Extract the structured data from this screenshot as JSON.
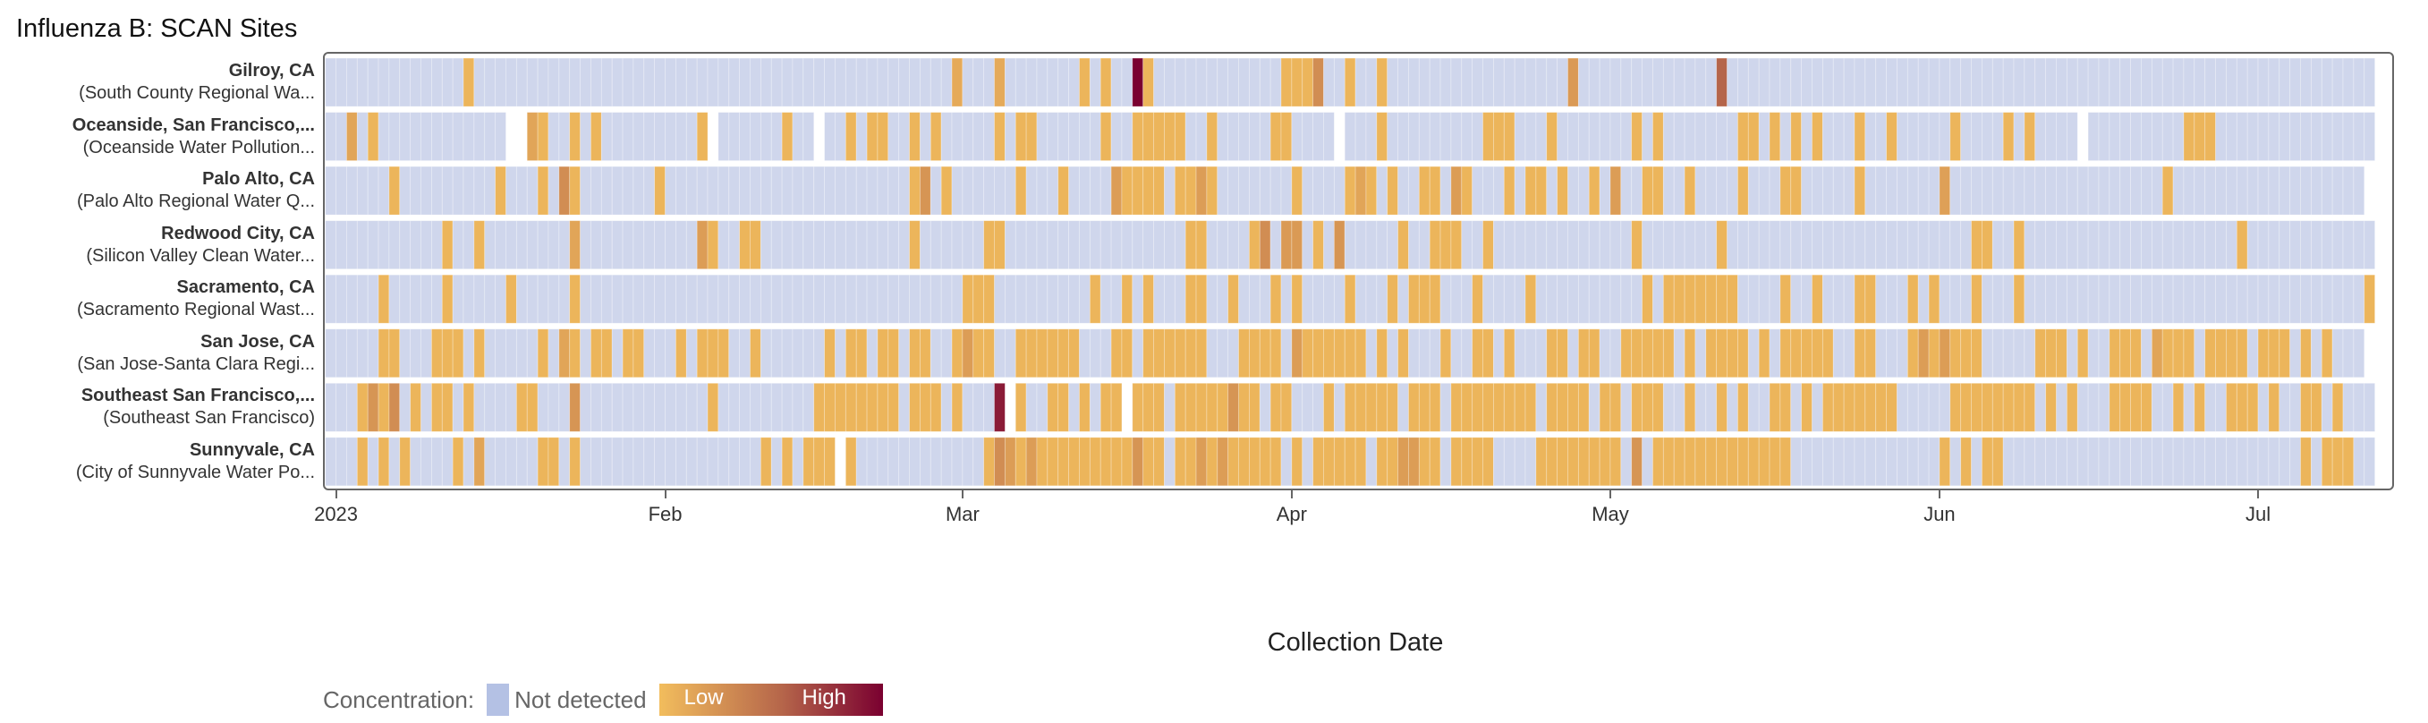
{
  "chart_data": {
    "type": "heatmap",
    "title": "Influenza B: SCAN Sites",
    "xlabel": "Collection Date",
    "x_range": [
      "2022-12-31",
      "2023-07-11"
    ],
    "xticks": [
      {
        "date": "2023-01-01",
        "label": "2023"
      },
      {
        "date": "2023-02-01",
        "label": "Feb"
      },
      {
        "date": "2023-03-01",
        "label": "Mar"
      },
      {
        "date": "2023-04-01",
        "label": "Apr"
      },
      {
        "date": "2023-05-01",
        "label": "May"
      },
      {
        "date": "2023-06-01",
        "label": "Jun"
      },
      {
        "date": "2023-07-01",
        "label": "Jul"
      }
    ],
    "legend": {
      "title": "Concentration:",
      "not_detected_label": "Not detected",
      "low_label": "Low",
      "high_label": "High",
      "placement": "bottom-left"
    },
    "colors": {
      "not_detected": "#cfd6ec",
      "legend_not_detected": "#b4c1e4",
      "low": "#f2bd5d",
      "mid": "#b5654a",
      "high": "#7a0030"
    },
    "value_scale": "relative concentration 0 (low) to 1 (high)",
    "default_detected_level": 0.05,
    "sites": [
      {
        "name": "Gilroy, CA",
        "facility": "(South County Regional Wa...",
        "end": "2023-07-11",
        "detected": [
          "2023-01-13",
          "2023-02-28",
          "2023-03-04",
          "2023-03-12",
          "2023-03-14",
          [
            "2023-03-17",
            "2023-03-18"
          ],
          [
            "2023-03-31",
            "2023-04-03"
          ],
          "2023-04-06",
          "2023-04-09",
          "2023-04-27",
          "2023-05-11"
        ],
        "levels": {
          "2023-02-28": 0.12,
          "2023-03-04": 0.12,
          "2023-03-17": 1.0,
          "2023-04-03": 0.3,
          "2023-04-27": 0.22,
          "2023-05-11": 0.55
        },
        "missing": []
      },
      {
        "name": "Oceanside, San Francisco,...",
        "facility": "(Oceanside Water Pollution...",
        "end": "2023-07-11",
        "detected": [
          "2023-01-02",
          "2023-01-04",
          [
            "2023-01-19",
            "2023-01-20"
          ],
          "2023-01-23",
          "2023-01-25",
          "2023-02-04",
          "2023-02-12",
          "2023-02-18",
          [
            "2023-02-20",
            "2023-02-21"
          ],
          "2023-02-24",
          "2023-02-26",
          "2023-03-04",
          [
            "2023-03-06",
            "2023-03-07"
          ],
          "2023-03-14",
          [
            "2023-03-17",
            "2023-03-21"
          ],
          "2023-03-24",
          [
            "2023-03-30",
            "2023-03-31"
          ],
          "2023-04-09",
          [
            "2023-04-19",
            "2023-04-21"
          ],
          "2023-04-25",
          "2023-05-03",
          "2023-05-05",
          [
            "2023-05-13",
            "2023-05-14"
          ],
          "2023-05-16",
          "2023-05-18",
          "2023-05-20",
          "2023-05-24",
          "2023-05-27",
          "2023-06-02",
          "2023-06-07",
          "2023-06-09",
          [
            "2023-06-24",
            "2023-06-26"
          ]
        ],
        "levels": {
          "2023-01-02": 0.15,
          "2023-01-19": 0.15
        },
        "missing": [
          "2023-01-17",
          "2023-01-18",
          "2023-02-05",
          "2023-02-15",
          "2023-04-05",
          "2023-06-14"
        ]
      },
      {
        "name": "Palo Alto, CA",
        "facility": "(Palo Alto Regional Water Q...",
        "end": "2023-07-10",
        "detected": [
          "2023-01-06",
          "2023-01-16",
          "2023-01-20",
          [
            "2023-01-22",
            "2023-01-23"
          ],
          "2023-01-31",
          [
            "2023-02-24",
            "2023-02-25"
          ],
          "2023-02-27",
          "2023-03-06",
          "2023-03-10",
          [
            "2023-03-15",
            "2023-03-19"
          ],
          [
            "2023-03-21",
            "2023-03-24"
          ],
          "2023-04-01",
          [
            "2023-04-06",
            "2023-04-08"
          ],
          "2023-04-10",
          [
            "2023-04-13",
            "2023-04-14"
          ],
          [
            "2023-04-16",
            "2023-04-17"
          ],
          "2023-04-21",
          [
            "2023-04-23",
            "2023-04-24"
          ],
          "2023-04-26",
          "2023-04-29",
          "2023-05-01",
          [
            "2023-05-04",
            "2023-05-05"
          ],
          "2023-05-08",
          "2023-05-13",
          [
            "2023-05-17",
            "2023-05-18"
          ],
          "2023-05-24",
          "2023-06-01",
          "2023-06-22"
        ],
        "levels": {
          "2023-01-22": 0.3,
          "2023-02-25": 0.25,
          "2023-03-15": 0.2,
          "2023-03-23": 0.2,
          "2023-04-07": 0.15,
          "2023-04-16": 0.2,
          "2023-05-01": 0.2,
          "2023-06-01": 0.18
        },
        "missing": []
      },
      {
        "name": "Redwood City, CA",
        "facility": "(Silicon Valley Clean Water...",
        "end": "2023-07-11",
        "detected": [
          "2023-01-11",
          "2023-01-14",
          "2023-01-23",
          [
            "2023-02-04",
            "2023-02-05"
          ],
          [
            "2023-02-08",
            "2023-02-09"
          ],
          "2023-02-24",
          [
            "2023-03-03",
            "2023-03-04"
          ],
          [
            "2023-03-22",
            "2023-03-23"
          ],
          [
            "2023-03-28",
            "2023-03-29"
          ],
          [
            "2023-03-31",
            "2023-04-01"
          ],
          "2023-04-03",
          "2023-04-05",
          "2023-04-11",
          [
            "2023-04-14",
            "2023-04-16"
          ],
          "2023-04-19",
          "2023-05-03",
          "2023-05-11",
          [
            "2023-06-04",
            "2023-06-05"
          ],
          "2023-06-08",
          "2023-06-29"
        ],
        "levels": {
          "2023-01-23": 0.15,
          "2023-02-04": 0.2,
          "2023-03-29": 0.3,
          "2023-03-31": 0.22,
          "2023-04-01": 0.22,
          "2023-04-05": 0.25
        },
        "missing": []
      },
      {
        "name": "Sacramento, CA",
        "facility": "(Sacramento Regional Wast...",
        "end": "2023-07-11",
        "detected": [
          "2023-01-05",
          "2023-01-11",
          "2023-01-17",
          "2023-01-23",
          [
            "2023-03-01",
            "2023-03-03"
          ],
          "2023-03-13",
          "2023-03-16",
          "2023-03-18",
          [
            "2023-03-22",
            "2023-03-23"
          ],
          "2023-03-26",
          "2023-03-30",
          "2023-04-01",
          "2023-04-06",
          "2023-04-10",
          [
            "2023-04-12",
            "2023-04-14"
          ],
          "2023-04-18",
          "2023-04-23",
          "2023-05-04",
          [
            "2023-05-06",
            "2023-05-12"
          ],
          "2023-05-17",
          "2023-05-20",
          [
            "2023-05-24",
            "2023-05-25"
          ],
          "2023-05-29",
          "2023-05-31",
          "2023-06-04",
          "2023-06-08",
          "2023-07-11"
        ],
        "levels": {},
        "missing": []
      },
      {
        "name": "San Jose, CA",
        "facility": "(San Jose-Santa Clara Regi...",
        "end": "2023-07-10",
        "detected": [
          [
            "2023-01-05",
            "2023-01-06"
          ],
          [
            "2023-01-10",
            "2023-01-12"
          ],
          "2023-01-14",
          "2023-01-20",
          [
            "2023-01-22",
            "2023-01-23"
          ],
          [
            "2023-01-25",
            "2023-01-26"
          ],
          [
            "2023-01-28",
            "2023-01-29"
          ],
          "2023-02-02",
          [
            "2023-02-04",
            "2023-02-06"
          ],
          "2023-02-09",
          "2023-02-16",
          [
            "2023-02-18",
            "2023-02-19"
          ],
          [
            "2023-02-21",
            "2023-02-22"
          ],
          [
            "2023-02-24",
            "2023-02-25"
          ],
          [
            "2023-02-28",
            "2023-03-03"
          ],
          [
            "2023-03-06",
            "2023-03-11"
          ],
          [
            "2023-03-15",
            "2023-03-16"
          ],
          [
            "2023-03-18",
            "2023-03-23"
          ],
          [
            "2023-03-27",
            "2023-03-30"
          ],
          [
            "2023-04-01",
            "2023-04-07"
          ],
          "2023-04-09",
          "2023-04-11",
          "2023-04-15",
          [
            "2023-04-18",
            "2023-04-19"
          ],
          "2023-04-21",
          [
            "2023-04-25",
            "2023-04-26"
          ],
          [
            "2023-04-28",
            "2023-04-29"
          ],
          [
            "2023-05-02",
            "2023-05-06"
          ],
          "2023-05-08",
          [
            "2023-05-10",
            "2023-05-13"
          ],
          "2023-05-15",
          [
            "2023-05-17",
            "2023-05-21"
          ],
          [
            "2023-05-24",
            "2023-05-25"
          ],
          [
            "2023-05-29",
            "2023-06-04"
          ],
          [
            "2023-06-10",
            "2023-06-12"
          ],
          "2023-06-14",
          [
            "2023-06-17",
            "2023-06-19"
          ],
          [
            "2023-06-21",
            "2023-06-24"
          ],
          [
            "2023-06-26",
            "2023-06-29"
          ],
          [
            "2023-07-01",
            "2023-07-03"
          ],
          "2023-07-05",
          "2023-07-07"
        ],
        "levels": {
          "2023-01-22": 0.15,
          "2023-03-01": 0.2,
          "2023-04-01": 0.2,
          "2023-05-30": 0.2,
          "2023-06-01": 0.2,
          "2023-06-21": 0.15
        },
        "missing": []
      },
      {
        "name": "Southeast San Francisco,...",
        "facility": "(Southeast San Francisco)",
        "end": "2023-07-11",
        "detected": [
          [
            "2023-01-03",
            "2023-01-06"
          ],
          "2023-01-08",
          [
            "2023-01-10",
            "2023-01-11"
          ],
          "2023-01-13",
          [
            "2023-01-18",
            "2023-01-19"
          ],
          "2023-01-23",
          "2023-02-05",
          [
            "2023-02-15",
            "2023-02-22"
          ],
          [
            "2023-02-24",
            "2023-02-26"
          ],
          "2023-02-28",
          "2023-03-04",
          "2023-03-06",
          [
            "2023-03-09",
            "2023-03-10"
          ],
          "2023-03-12",
          [
            "2023-03-14",
            "2023-03-15"
          ],
          [
            "2023-03-17",
            "2023-03-19"
          ],
          [
            "2023-03-21",
            "2023-03-28"
          ],
          [
            "2023-03-30",
            "2023-03-31"
          ],
          "2023-04-04",
          [
            "2023-04-06",
            "2023-04-10"
          ],
          [
            "2023-04-12",
            "2023-04-14"
          ],
          [
            "2023-04-16",
            "2023-04-23"
          ],
          [
            "2023-04-25",
            "2023-04-28"
          ],
          [
            "2023-04-30",
            "2023-05-01"
          ],
          [
            "2023-05-03",
            "2023-05-05"
          ],
          "2023-05-08",
          "2023-05-11",
          "2023-05-13",
          [
            "2023-05-16",
            "2023-05-17"
          ],
          "2023-05-19",
          [
            "2023-05-21",
            "2023-05-27"
          ],
          [
            "2023-06-02",
            "2023-06-09"
          ],
          "2023-06-11",
          "2023-06-13",
          [
            "2023-06-17",
            "2023-06-20"
          ],
          "2023-06-23",
          "2023-06-25",
          [
            "2023-06-28",
            "2023-06-30"
          ],
          "2023-07-02",
          [
            "2023-07-05",
            "2023-07-06"
          ],
          "2023-07-08"
        ],
        "levels": {
          "2023-01-04": 0.25,
          "2023-01-06": 0.3,
          "2023-01-23": 0.25,
          "2023-03-04": 0.88,
          "2023-03-26": 0.25
        },
        "missing": [
          "2023-03-05",
          "2023-03-16"
        ]
      },
      {
        "name": "Sunnyvale, CA",
        "facility": "(City of Sunnyvale Water Po...",
        "end": "2023-07-11",
        "detected": [
          "2023-01-03",
          "2023-01-05",
          "2023-01-07",
          "2023-01-12",
          "2023-01-14",
          [
            "2023-01-20",
            "2023-01-21"
          ],
          "2023-01-23",
          "2023-02-10",
          "2023-02-12",
          [
            "2023-02-14",
            "2023-02-16"
          ],
          "2023-02-18",
          [
            "2023-03-03",
            "2023-03-19"
          ],
          [
            "2023-03-21",
            "2023-03-30"
          ],
          "2023-04-01",
          [
            "2023-04-03",
            "2023-04-07"
          ],
          [
            "2023-04-09",
            "2023-04-14"
          ],
          [
            "2023-04-16",
            "2023-04-19"
          ],
          [
            "2023-04-24",
            "2023-05-01"
          ],
          "2023-05-03",
          [
            "2023-05-05",
            "2023-05-17"
          ],
          "2023-06-01",
          "2023-06-03",
          [
            "2023-06-05",
            "2023-06-06"
          ],
          "2023-07-05",
          [
            "2023-07-07",
            "2023-07-09"
          ]
        ],
        "levels": {
          "2023-01-14": 0.15,
          "2023-03-04": 0.3,
          "2023-03-05": 0.2,
          "2023-03-07": 0.2,
          "2023-03-17": 0.25,
          "2023-03-23": 0.2,
          "2023-03-25": 0.2,
          "2023-04-11": 0.2,
          "2023-04-12": 0.2,
          "2023-05-03": 0.25
        },
        "missing": [
          "2023-02-17"
        ]
      }
    ]
  }
}
